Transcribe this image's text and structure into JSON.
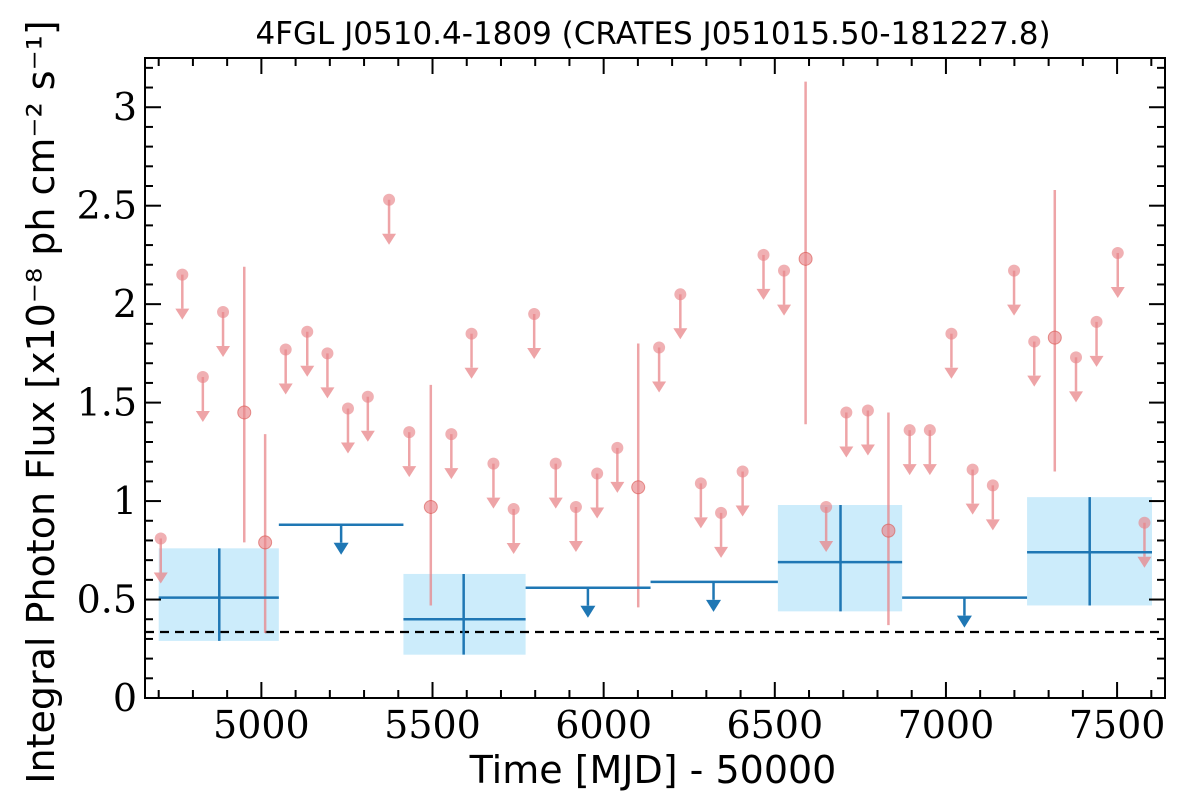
{
  "chart_data": {
    "type": "scatter",
    "title": "4FGL J0510.4-1809 (CRATES J051015.50-181227.8)",
    "xlabel": "Time [MJD] - 50000",
    "ylabel": "Integral Photon Flux [x10⁻⁸ ph cm⁻² s⁻¹]",
    "xlim": [
      4660,
      7640
    ],
    "ylim": [
      0,
      3.25
    ],
    "x_ticks": [
      5000,
      5500,
      6000,
      6500,
      7000,
      7500
    ],
    "x_tick_labels": [
      "5000",
      "5500",
      "6000",
      "6500",
      "7000",
      "7500"
    ],
    "y_ticks": [
      0,
      0.5,
      1,
      1.5,
      2,
      2.5,
      3
    ],
    "y_tick_labels": [
      "0",
      "0.5",
      "1",
      "1.5",
      "2",
      "2.5",
      "3"
    ],
    "reference_line": {
      "y": 0.335,
      "style": "dashed",
      "color": "#000000"
    },
    "colors": {
      "short_bins": "#e8868a",
      "long_bins": "#1f77b4",
      "long_bins_band": "#ccecfb"
    },
    "short_bins": {
      "upper_limits": [
        {
          "x": 4706,
          "y": 0.81
        },
        {
          "x": 4769,
          "y": 2.15
        },
        {
          "x": 4829,
          "y": 1.63
        },
        {
          "x": 4888,
          "y": 1.96
        },
        {
          "x": 5071,
          "y": 1.77
        },
        {
          "x": 5134,
          "y": 1.86
        },
        {
          "x": 5193,
          "y": 1.75
        },
        {
          "x": 5253,
          "y": 1.47
        },
        {
          "x": 5311,
          "y": 1.53
        },
        {
          "x": 5373,
          "y": 2.53
        },
        {
          "x": 5432,
          "y": 1.35
        },
        {
          "x": 5555,
          "y": 1.34
        },
        {
          "x": 5614,
          "y": 1.85
        },
        {
          "x": 5678,
          "y": 1.19
        },
        {
          "x": 5737,
          "y": 0.96
        },
        {
          "x": 5797,
          "y": 1.95
        },
        {
          "x": 5860,
          "y": 1.19
        },
        {
          "x": 5919,
          "y": 0.97
        },
        {
          "x": 5981,
          "y": 1.14
        },
        {
          "x": 6040,
          "y": 1.27
        },
        {
          "x": 6162,
          "y": 1.78
        },
        {
          "x": 6224,
          "y": 2.05
        },
        {
          "x": 6284,
          "y": 1.09
        },
        {
          "x": 6343,
          "y": 0.94
        },
        {
          "x": 6406,
          "y": 1.15
        },
        {
          "x": 6467,
          "y": 2.25
        },
        {
          "x": 6527,
          "y": 2.17
        },
        {
          "x": 6650,
          "y": 0.97
        },
        {
          "x": 6709,
          "y": 1.45
        },
        {
          "x": 6772,
          "y": 1.46
        },
        {
          "x": 6894,
          "y": 1.36
        },
        {
          "x": 6953,
          "y": 1.36
        },
        {
          "x": 7016,
          "y": 1.85
        },
        {
          "x": 7078,
          "y": 1.16
        },
        {
          "x": 7137,
          "y": 1.08
        },
        {
          "x": 7199,
          "y": 2.17
        },
        {
          "x": 7258,
          "y": 1.81
        },
        {
          "x": 7380,
          "y": 1.73
        },
        {
          "x": 7440,
          "y": 1.91
        },
        {
          "x": 7502,
          "y": 2.26
        },
        {
          "x": 7580,
          "y": 0.89
        }
      ],
      "detections": [
        {
          "x": 4950,
          "y": 1.45,
          "y_err_low": 0.79,
          "y_err_high": 2.19
        },
        {
          "x": 5011,
          "y": 0.79,
          "y_err_low": 0.33,
          "y_err_high": 1.34
        },
        {
          "x": 5495,
          "y": 0.97,
          "y_err_low": 0.47,
          "y_err_high": 1.59
        },
        {
          "x": 6101,
          "y": 1.07,
          "y_err_low": 0.46,
          "y_err_high": 1.8
        },
        {
          "x": 6590,
          "y": 2.23,
          "y_err_low": 1.39,
          "y_err_high": 3.13
        },
        {
          "x": 6832,
          "y": 0.85,
          "y_err_low": 0.37,
          "y_err_high": 1.45
        },
        {
          "x": 7318,
          "y": 1.83,
          "y_err_low": 1.15,
          "y_err_high": 2.58
        }
      ]
    },
    "long_bins": {
      "detections": [
        {
          "x": 4877,
          "x_start": 4700,
          "x_end": 5051,
          "y": 0.51,
          "y_err_low": 0.29,
          "y_err_high": 0.76
        },
        {
          "x": 5591,
          "x_start": 5415,
          "x_end": 5772,
          "y": 0.4,
          "y_err_low": 0.22,
          "y_err_high": 0.63
        },
        {
          "x": 6692,
          "x_start": 6509,
          "x_end": 6872,
          "y": 0.69,
          "y_err_low": 0.44,
          "y_err_high": 0.98
        },
        {
          "x": 7420,
          "x_start": 7237,
          "x_end": 7602,
          "y": 0.74,
          "y_err_low": 0.47,
          "y_err_high": 1.02
        }
      ],
      "upper_limits": [
        {
          "x": 5233,
          "x_start": 5051,
          "x_end": 5415,
          "y": 0.88
        },
        {
          "x": 5954,
          "x_start": 5772,
          "x_end": 6137,
          "y": 0.56
        },
        {
          "x": 6321,
          "x_start": 6137,
          "x_end": 6509,
          "y": 0.59
        },
        {
          "x": 7054,
          "x_start": 6872,
          "x_end": 7237,
          "y": 0.51
        }
      ]
    }
  }
}
